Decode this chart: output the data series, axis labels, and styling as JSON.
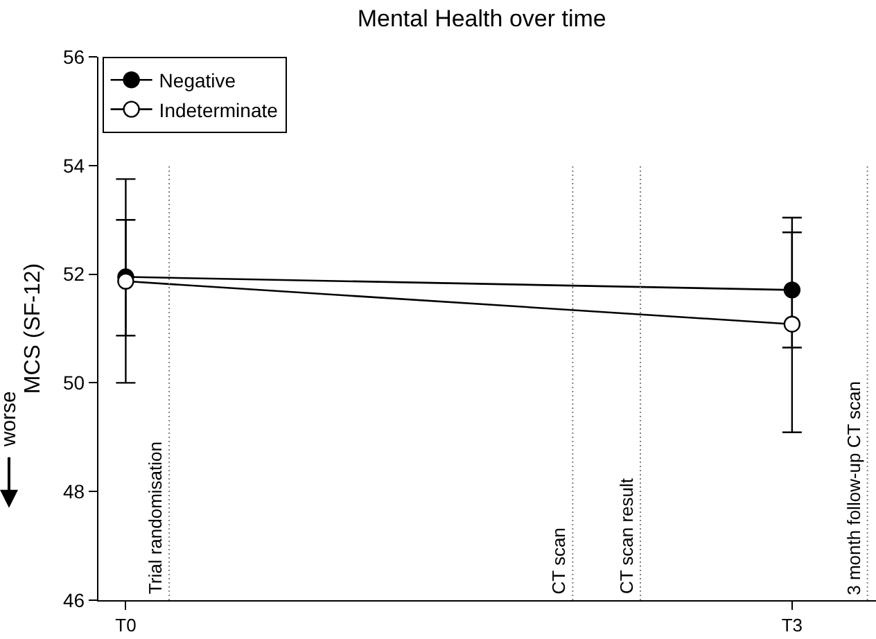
{
  "chart_data": {
    "type": "line",
    "title": "Mental Health over time",
    "ylabel": "MCS (SF-12)",
    "categories": [
      "T0",
      "T3"
    ],
    "series": [
      {
        "name": "Negative",
        "color": "#000000",
        "values": [
          51.95,
          51.71
        ],
        "errors": [
          [
            50.87,
            53.0
          ],
          [
            50.65,
            52.77
          ]
        ]
      },
      {
        "name": "Indeterminate",
        "color": "#ffffff",
        "values": [
          51.87,
          51.08
        ],
        "errors": [
          [
            50.0,
            53.75
          ],
          [
            49.09,
            53.04
          ]
        ]
      }
    ],
    "ylim": [
      46,
      56
    ],
    "yticks": [
      46,
      48,
      50,
      52,
      54,
      56
    ],
    "annotations": [
      "worse",
      "Trial randomisation",
      "CT scan",
      "CT scan result",
      "3 month follow-up CT scan"
    ],
    "marker": "circle",
    "line_style": "solid",
    "legend": "top left"
  }
}
